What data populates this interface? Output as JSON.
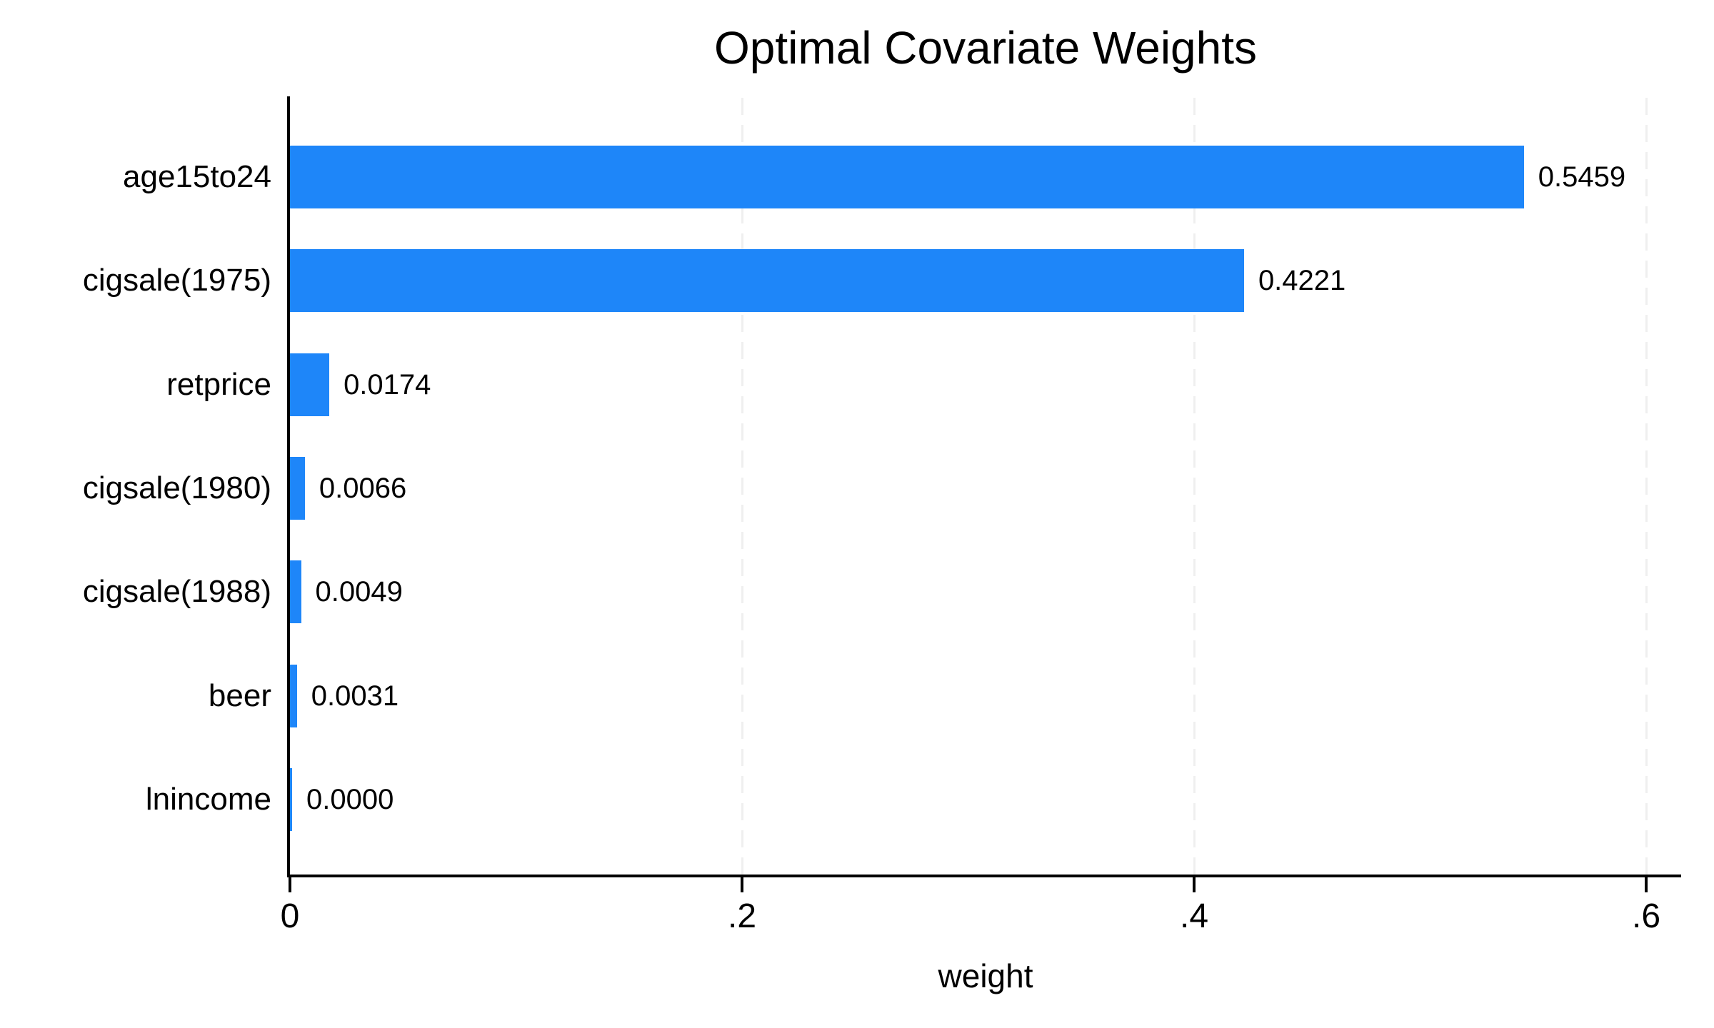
{
  "chart_data": {
    "type": "bar",
    "orientation": "horizontal",
    "title": "Optimal Covariate Weights",
    "xlabel": "weight",
    "ylabel": "",
    "categories": [
      "age15to24",
      "cigsale(1975)",
      "retprice",
      "cigsale(1980)",
      "cigsale(1988)",
      "beer",
      "lnincome"
    ],
    "values": [
      0.5459,
      0.4221,
      0.0174,
      0.0066,
      0.0049,
      0.0031,
      0.0
    ],
    "value_labels": [
      "0.5459",
      "0.4221",
      "0.0174",
      "0.0066",
      "0.0049",
      "0.0031",
      "0.0000"
    ],
    "x_ticks": [
      {
        "value": 0.0,
        "label": "0"
      },
      {
        "value": 0.2,
        "label": ".2"
      },
      {
        "value": 0.4,
        "label": ".4"
      },
      {
        "value": 0.6,
        "label": ".6"
      }
    ],
    "xlim": [
      0,
      0.6156
    ],
    "grid": "vertical dashed gridlines at labeled ticks (.2, .4, .6), none at 0",
    "legend_position": "none",
    "colors": {
      "bar_fill": "#1E86F9",
      "grid_line": "#EFEFEF",
      "axis_line": "#000000",
      "text": "#000000",
      "background": "#FFFFFF"
    }
  }
}
